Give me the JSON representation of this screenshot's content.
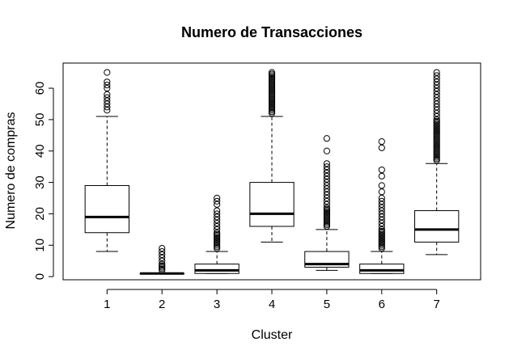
{
  "chart_data": {
    "type": "box",
    "title": "Numero de Transacciones",
    "xlabel": "Cluster",
    "ylabel": "Numero de compras",
    "categories": [
      "1",
      "2",
      "3",
      "4",
      "5",
      "6",
      "7"
    ],
    "yticks": [
      "0",
      "10",
      "20",
      "30",
      "40",
      "50",
      "60"
    ],
    "ylim": [
      -1,
      68
    ],
    "grid": false,
    "boxes": [
      {
        "category": "1",
        "whisker_low": 8,
        "q1": 14,
        "median": 19,
        "q3": 29,
        "whisker_high": 51,
        "outliers": [
          53,
          54,
          55,
          56,
          57,
          58,
          60,
          61,
          62,
          65
        ]
      },
      {
        "category": "2",
        "whisker_low": 1,
        "q1": 1,
        "median": 1,
        "q3": 1,
        "whisker_high": 1,
        "outliers": [
          2,
          2.5,
          3,
          3.5,
          4,
          5,
          6,
          7,
          8,
          9
        ]
      },
      {
        "category": "3",
        "whisker_low": 1,
        "q1": 1,
        "median": 2,
        "q3": 4,
        "whisker_high": 8,
        "outliers": [
          9,
          9.5,
          10,
          10.5,
          11,
          11.5,
          12,
          12.5,
          13,
          13.5,
          14,
          15,
          16,
          17,
          18,
          19,
          20,
          21,
          23,
          24,
          25
        ]
      },
      {
        "category": "4",
        "whisker_low": 11,
        "q1": 16,
        "median": 20,
        "q3": 30,
        "whisker_high": 51,
        "outliers": [
          52,
          52.5,
          53,
          53.5,
          54,
          54.5,
          55,
          55.5,
          56,
          56.5,
          57,
          57.5,
          58,
          58.5,
          59,
          59.5,
          60,
          60.5,
          61,
          61.5,
          62,
          62.5,
          63,
          63.5,
          64,
          64.5,
          65
        ]
      },
      {
        "category": "5",
        "whisker_low": 2,
        "q1": 3,
        "median": 4,
        "q3": 8,
        "whisker_high": 15,
        "outliers": [
          16,
          16.5,
          17,
          17.5,
          18,
          18.5,
          19,
          19.5,
          20,
          20.5,
          21,
          21.5,
          22,
          23,
          24,
          25,
          26,
          27,
          28,
          29,
          30,
          31,
          32,
          33,
          34,
          35,
          36,
          40,
          44
        ]
      },
      {
        "category": "6",
        "whisker_low": 1,
        "q1": 1,
        "median": 2,
        "q3": 4,
        "whisker_high": 8,
        "outliers": [
          9,
          9.5,
          10,
          10.5,
          11,
          11.5,
          12,
          12.5,
          13,
          13.5,
          14,
          14.5,
          15,
          16,
          17,
          18,
          19,
          20,
          21,
          22,
          23,
          24,
          25,
          27,
          29,
          32,
          34,
          41,
          43
        ]
      },
      {
        "category": "7",
        "whisker_low": 7,
        "q1": 11,
        "median": 15,
        "q3": 21,
        "whisker_high": 36,
        "outliers": [
          37,
          37.5,
          38,
          38.5,
          39,
          39.5,
          40,
          40.5,
          41,
          41.5,
          42,
          42.5,
          43,
          43.5,
          44,
          44.5,
          45,
          45.5,
          46,
          46.5,
          47,
          47.5,
          48,
          48.5,
          49,
          49.5,
          50,
          51,
          52,
          53,
          54,
          55,
          56,
          57,
          58,
          59,
          60,
          61,
          62,
          63,
          64,
          65
        ]
      }
    ]
  }
}
